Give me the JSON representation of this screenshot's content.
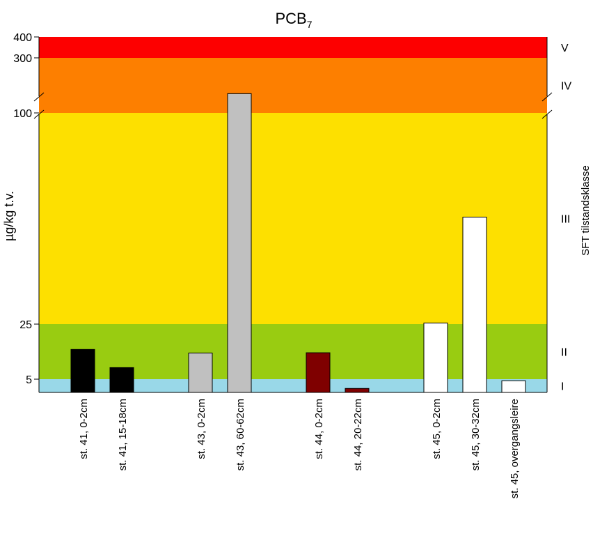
{
  "chart_data": {
    "type": "bar",
    "title": "PCB",
    "title_subscript": "7",
    "ylabel": "µg/kg t.v.",
    "right_label": "SFT tilstandsklasse",
    "y_tick_labels": [
      "5",
      "25",
      "100",
      "300",
      "400"
    ],
    "classes": [
      {
        "label": "I",
        "from": 0,
        "to": 5,
        "color": "#99d8e8"
      },
      {
        "label": "II",
        "from": 5,
        "to": 25,
        "color": "#99cc11"
      },
      {
        "label": "III",
        "from": 25,
        "to": 100,
        "color": "#fde000"
      },
      {
        "label": "IV",
        "from": 100,
        "to": 300,
        "color": "#fd7f00"
      },
      {
        "label": "V",
        "from": 300,
        "to": 400,
        "color": "#fd0000"
      }
    ],
    "axis_break": "between 100 and 300",
    "categories": [
      "st. 41, 0-2cm",
      "st. 41, 15-18cm",
      "st. 43, 0-2cm",
      "st. 43, 60-62cm",
      "st. 44, 0-2cm",
      "st. 44, 20-22cm",
      "st. 45, 0-2cm",
      "st. 45, 30-32cm",
      "st. 45, overgangsleire"
    ],
    "values": [
      15.8,
      9.2,
      14.5,
      170,
      14.6,
      1.5,
      25.4,
      63,
      4.4
    ],
    "bar_colors": [
      "#000000",
      "#000000",
      "#c0c0c0",
      "#c0c0c0",
      "#7f0000",
      "#7f0000",
      "#ffffff",
      "#ffffff",
      "#ffffff"
    ],
    "ylim": [
      0,
      400
    ],
    "grid": false,
    "legend": "none"
  }
}
